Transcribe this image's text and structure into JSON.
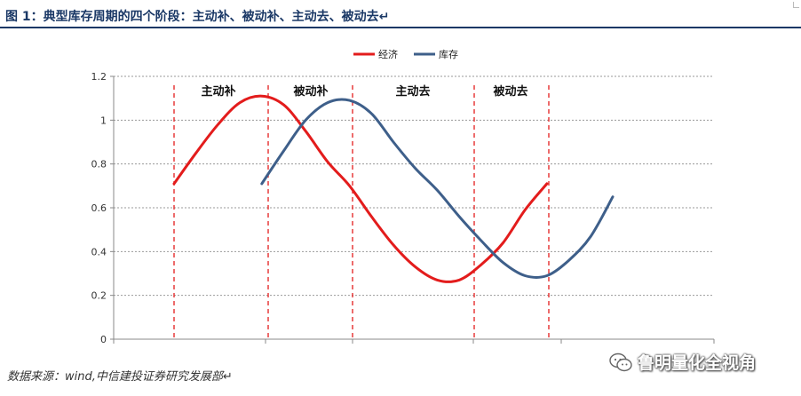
{
  "header": {
    "title": "图 1：典型库存周期的四个阶段：主动补、被动补、主动去、被动去↵"
  },
  "footer": {
    "source": "数据来源：wind,中信建投证券研究发展部↵"
  },
  "watermark": {
    "text": "鲁明量化全视角",
    "icon": "wechat-icon"
  },
  "chart_data": {
    "type": "line",
    "ylim": [
      0,
      1.2
    ],
    "yticks": [
      "1.2",
      "1",
      "0.8",
      "0.6",
      "0.4",
      "0.2",
      "0"
    ],
    "grid": true,
    "legend_position": "top-center",
    "series": [
      {
        "name": "经济",
        "color": "#e31c1c",
        "points": [
          [
            0.0,
            0.71
          ],
          [
            0.05,
            0.85
          ],
          [
            0.1,
            0.98
          ],
          [
            0.15,
            1.08
          ],
          [
            0.2,
            1.11
          ],
          [
            0.25,
            1.07
          ],
          [
            0.3,
            0.95
          ],
          [
            0.35,
            0.81
          ],
          [
            0.4,
            0.7
          ],
          [
            0.45,
            0.56
          ],
          [
            0.5,
            0.43
          ],
          [
            0.55,
            0.33
          ],
          [
            0.6,
            0.27
          ],
          [
            0.65,
            0.27
          ],
          [
            0.7,
            0.34
          ],
          [
            0.75,
            0.44
          ],
          [
            0.8,
            0.59
          ],
          [
            0.85,
            0.71
          ]
        ]
      },
      {
        "name": "库存",
        "color": "#3e5f8a",
        "points": [
          [
            0.2,
            0.71
          ],
          [
            0.25,
            0.86
          ],
          [
            0.3,
            1.0
          ],
          [
            0.35,
            1.08
          ],
          [
            0.4,
            1.09
          ],
          [
            0.45,
            1.03
          ],
          [
            0.5,
            0.9
          ],
          [
            0.55,
            0.78
          ],
          [
            0.6,
            0.68
          ],
          [
            0.65,
            0.56
          ],
          [
            0.7,
            0.45
          ],
          [
            0.75,
            0.35
          ],
          [
            0.8,
            0.29
          ],
          [
            0.85,
            0.29
          ],
          [
            0.9,
            0.36
          ],
          [
            0.95,
            0.47
          ],
          [
            1.0,
            0.65
          ]
        ]
      }
    ],
    "phases": [
      {
        "label": "主动补",
        "start": 0.0,
        "end": 0.2
      },
      {
        "label": "被动补",
        "start": 0.2,
        "end": 0.39
      },
      {
        "label": "主动去",
        "start": 0.39,
        "end": 0.64
      },
      {
        "label": "被动去",
        "start": 0.64,
        "end": 0.81
      }
    ]
  }
}
